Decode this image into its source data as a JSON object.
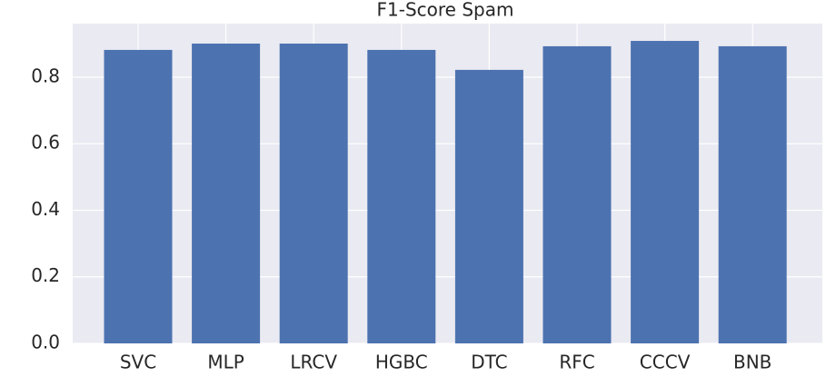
{
  "chart_data": {
    "type": "bar",
    "title": "F1-Score Spam",
    "categories": [
      "SVC",
      "MLP",
      "LRCV",
      "HGBC",
      "DTC",
      "RFC",
      "CCCV",
      "BNB"
    ],
    "values": [
      0.882,
      0.901,
      0.901,
      0.882,
      0.822,
      0.893,
      0.909,
      0.893
    ],
    "color": "#4c72b0",
    "ylim": [
      0,
      0.961
    ],
    "yticks": [
      {
        "value": 0,
        "label": "0.0"
      },
      0.2,
      0.4,
      0.6,
      0.8
    ],
    "grid": true
  }
}
